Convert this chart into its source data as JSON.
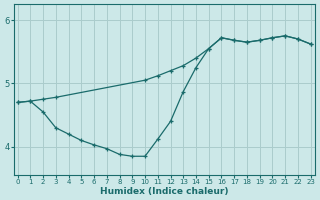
{
  "xlabel": "Humidex (Indice chaleur)",
  "bg_color": "#cce8e8",
  "line_color": "#1a6b6b",
  "grid_color": "#aacccc",
  "xlim": [
    -0.3,
    23.3
  ],
  "ylim": [
    3.55,
    6.25
  ],
  "yticks": [
    4,
    5,
    6
  ],
  "xticks": [
    0,
    1,
    2,
    3,
    4,
    5,
    6,
    7,
    8,
    9,
    10,
    11,
    12,
    13,
    14,
    15,
    16,
    17,
    18,
    19,
    20,
    21,
    22,
    23
  ],
  "line1_x": [
    0,
    1,
    2,
    3,
    10,
    11,
    12,
    13,
    14,
    15,
    16,
    17,
    18,
    19,
    20,
    21,
    22,
    23
  ],
  "line1_y": [
    4.7,
    4.72,
    4.75,
    4.78,
    5.05,
    5.12,
    5.2,
    5.28,
    5.4,
    5.55,
    5.72,
    5.68,
    5.65,
    5.68,
    5.72,
    5.75,
    5.7,
    5.62
  ],
  "line2_x": [
    0,
    1,
    2,
    3,
    4,
    5,
    6,
    7,
    8,
    9,
    10,
    11,
    12,
    13,
    14,
    15,
    16,
    17,
    18,
    19,
    20,
    21,
    22,
    23
  ],
  "line2_y": [
    4.7,
    4.72,
    4.55,
    4.3,
    4.2,
    4.1,
    4.03,
    3.97,
    3.88,
    3.85,
    3.85,
    4.12,
    4.4,
    4.87,
    5.25,
    5.55,
    5.72,
    5.68,
    5.65,
    5.68,
    5.72,
    5.75,
    5.7,
    5.62
  ]
}
